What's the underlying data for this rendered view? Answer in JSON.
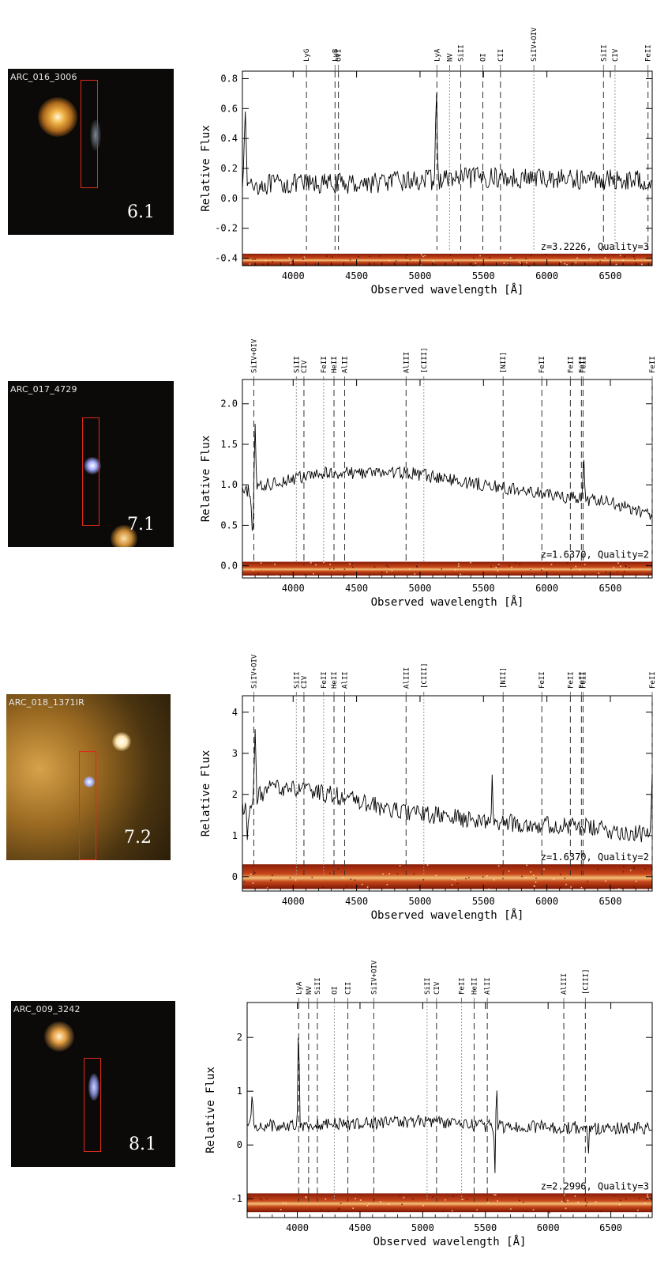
{
  "panels": [
    {
      "image_label": "ARC_016_3006",
      "panel_id": "6.1",
      "x_label": "Observed wavelength [Å]",
      "y_label": "Relative Flux",
      "annotation": "z=3.2226, Quality=3"
    },
    {
      "image_label": "ARC_017_4729",
      "panel_id": "7.1",
      "x_label": "Observed wavelength [Å]",
      "y_label": "Relative Flux",
      "annotation": "z=1.6370, Quality=2"
    },
    {
      "image_label": "ARC_018_1371IR",
      "panel_id": "7.2",
      "x_label": "Observed wavelength [Å]",
      "y_label": "Relative Flux",
      "annotation": "z=1.6370, Quality=2"
    },
    {
      "image_label": "ARC_009_3242",
      "panel_id": "8.1",
      "x_label": "Observed wavelength [Å]",
      "y_label": "Relative Flux",
      "annotation": "z=2.2996, Quality=3"
    }
  ],
  "chart_data": [
    {
      "type": "line",
      "xlabel": "Observed wavelength [Å]",
      "ylabel": "Relative Flux",
      "xlim": [
        3600,
        6830
      ],
      "ylim": [
        -0.45,
        0.85
      ],
      "xticks": [
        4000,
        4500,
        5000,
        5500,
        6000,
        6500
      ],
      "yticks": [
        -0.4,
        -0.2,
        0.0,
        0.2,
        0.4,
        0.6,
        0.8
      ],
      "ytick_labels": [
        "-0.4",
        "-0.2",
        "0.0",
        "0.2",
        "0.4",
        "0.6",
        "0.8"
      ],
      "annotation": "z=3.2226, Quality=3",
      "redshift": 3.2226,
      "quality": 3,
      "spectrum_2d_range": [
        -0.45,
        -0.37
      ],
      "continuum": [
        [
          3600,
          0.09
        ],
        [
          4500,
          0.1
        ],
        [
          5500,
          0.14
        ],
        [
          6830,
          0.12
        ]
      ],
      "noise": 0.07,
      "features": [
        {
          "x": 3620,
          "amp": 0.45,
          "w": 12
        },
        {
          "x": 5128,
          "amp": 0.55,
          "w": 9
        }
      ],
      "lines": [
        {
          "name": "LyG",
          "x": 4105,
          "style": "dash"
        },
        {
          "name": "LyB",
          "x": 4330,
          "style": "dash"
        },
        {
          "name": "OVI",
          "x": 4357,
          "style": "dash"
        },
        {
          "name": "LyA",
          "x": 5133,
          "style": "dash"
        },
        {
          "name": "NV",
          "x": 5233,
          "style": "dot"
        },
        {
          "name": "SiII",
          "x": 5321,
          "style": "dash"
        },
        {
          "name": "OI",
          "x": 5495,
          "style": "dash"
        },
        {
          "name": "CII",
          "x": 5634,
          "style": "dash"
        },
        {
          "name": "SiIV+OIV",
          "x": 5897,
          "style": "dot"
        },
        {
          "name": "SiII",
          "x": 6446,
          "style": "dash"
        },
        {
          "name": "CIV",
          "x": 6537,
          "style": "dot"
        },
        {
          "name": "FeII",
          "x": 6797,
          "style": "dash"
        }
      ]
    },
    {
      "type": "line",
      "xlabel": "Observed wavelength [Å]",
      "ylabel": "Relative Flux",
      "xlim": [
        3600,
        6830
      ],
      "ylim": [
        -0.15,
        2.3
      ],
      "xticks": [
        4000,
        4500,
        5000,
        5500,
        6000,
        6500
      ],
      "yticks": [
        0.0,
        0.5,
        1.0,
        1.5,
        2.0
      ],
      "ytick_labels": [
        "0.0",
        "0.5",
        "1.0",
        "1.5",
        "2.0"
      ],
      "annotation": "z=1.6370, Quality=2",
      "redshift": 1.637,
      "quality": 2,
      "spectrum_2d_range": [
        -0.12,
        0.05
      ],
      "continuum": [
        [
          3600,
          0.9
        ],
        [
          3900,
          1.05
        ],
        [
          4300,
          1.15
        ],
        [
          4900,
          1.15
        ],
        [
          5500,
          1.0
        ],
        [
          6000,
          0.88
        ],
        [
          6500,
          0.78
        ],
        [
          6830,
          0.62
        ]
      ],
      "noise": 0.08,
      "features": [
        {
          "x": 3680,
          "amp": -0.6,
          "w": 10
        },
        {
          "x": 3700,
          "amp": 0.85,
          "w": 8
        },
        {
          "x": 6290,
          "amp": 0.45,
          "w": 8
        }
      ],
      "lines": [
        {
          "name": "SiIV+OIV",
          "x": 3690,
          "style": "dash"
        },
        {
          "name": "SiII",
          "x": 4025,
          "style": "dot"
        },
        {
          "name": "CIV",
          "x": 4085,
          "style": "dash"
        },
        {
          "name": "FeII",
          "x": 4240,
          "style": "dot"
        },
        {
          "name": "HeII",
          "x": 4322,
          "style": "dash"
        },
        {
          "name": "AlII",
          "x": 4406,
          "style": "dash"
        },
        {
          "name": "AlIII",
          "x": 4890,
          "style": "dash"
        },
        {
          "name": "[CIII]",
          "x": 5030,
          "style": "dot"
        },
        {
          "name": "[NII]",
          "x": 5655,
          "style": "dash"
        },
        {
          "name": "FeII",
          "x": 5960,
          "style": "dash"
        },
        {
          "name": "FeII",
          "x": 6185,
          "style": "dash"
        },
        {
          "name": "FeII",
          "x": 6272,
          "style": "dash"
        },
        {
          "name": "FeII",
          "x": 6285,
          "style": "dash"
        },
        {
          "name": "FeII",
          "x": 6830,
          "style": "dash"
        }
      ]
    },
    {
      "type": "line",
      "xlabel": "Observed wavelength [Å]",
      "ylabel": "Relative Flux",
      "xlim": [
        3600,
        6830
      ],
      "ylim": [
        -0.35,
        4.4
      ],
      "xticks": [
        4000,
        4500,
        5000,
        5500,
        6000,
        6500
      ],
      "yticks": [
        0,
        1,
        2,
        3,
        4
      ],
      "ytick_labels": [
        "0",
        "1",
        "2",
        "3",
        "4"
      ],
      "annotation": "z=1.6370, Quality=2",
      "redshift": 1.637,
      "quality": 2,
      "spectrum_2d_range": [
        -0.3,
        0.3
      ],
      "continuum": [
        [
          3600,
          1.7
        ],
        [
          3850,
          2.2
        ],
        [
          4300,
          2.0
        ],
        [
          4800,
          1.6
        ],
        [
          5500,
          1.35
        ],
        [
          6300,
          1.2
        ],
        [
          6830,
          1.0
        ]
      ],
      "noise": 0.22,
      "features": [
        {
          "x": 3640,
          "amp": -0.8,
          "w": 10
        },
        {
          "x": 3700,
          "amp": 1.5,
          "w": 8
        },
        {
          "x": 5570,
          "amp": 1.0,
          "w": 6
        },
        {
          "x": 6830,
          "amp": 1.3,
          "w": 10
        }
      ],
      "lines": [
        {
          "name": "SiIV+OIV",
          "x": 3690,
          "style": "dash"
        },
        {
          "name": "SiII",
          "x": 4025,
          "style": "dot"
        },
        {
          "name": "CIV",
          "x": 4085,
          "style": "dash"
        },
        {
          "name": "FeII",
          "x": 4240,
          "style": "dot"
        },
        {
          "name": "HeII",
          "x": 4322,
          "style": "dash"
        },
        {
          "name": "AlII",
          "x": 4406,
          "style": "dash"
        },
        {
          "name": "AlIII",
          "x": 4890,
          "style": "dash"
        },
        {
          "name": "[CIII]",
          "x": 5030,
          "style": "dot"
        },
        {
          "name": "[NII]",
          "x": 5655,
          "style": "dash"
        },
        {
          "name": "FeII",
          "x": 5960,
          "style": "dash"
        },
        {
          "name": "FeII",
          "x": 6185,
          "style": "dash"
        },
        {
          "name": "FeII",
          "x": 6272,
          "style": "dash"
        },
        {
          "name": "FeII",
          "x": 6285,
          "style": "dash"
        },
        {
          "name": "FeII",
          "x": 6830,
          "style": "dash"
        }
      ]
    },
    {
      "type": "line",
      "xlabel": "Observed wavelength [Å]",
      "ylabel": "Relative Flux",
      "xlim": [
        3600,
        6830
      ],
      "ylim": [
        -1.35,
        2.65
      ],
      "xticks": [
        4000,
        4500,
        5000,
        5500,
        6000,
        6500
      ],
      "yticks": [
        -1,
        0,
        1,
        2
      ],
      "ytick_labels": [
        "-1",
        "0",
        "1",
        "2"
      ],
      "annotation": "z=2.2996, Quality=3",
      "redshift": 2.2996,
      "quality": 3,
      "spectrum_2d_range": [
        -1.25,
        -0.9
      ],
      "continuum": [
        [
          3600,
          0.35
        ],
        [
          4500,
          0.4
        ],
        [
          5000,
          0.45
        ],
        [
          5500,
          0.35
        ],
        [
          6830,
          0.3
        ]
      ],
      "noise": 0.12,
      "features": [
        {
          "x": 3640,
          "amp": 0.5,
          "w": 10
        },
        {
          "x": 4010,
          "amp": 1.85,
          "w": 7
        },
        {
          "x": 5575,
          "amp": -0.95,
          "w": 5
        },
        {
          "x": 5590,
          "amp": 0.6,
          "w": 6
        },
        {
          "x": 6320,
          "amp": -0.7,
          "w": 5
        }
      ],
      "lines": [
        {
          "name": "LyA",
          "x": 4011,
          "style": "dash"
        },
        {
          "name": "NV",
          "x": 4090,
          "style": "dash"
        },
        {
          "name": "SiII",
          "x": 4160,
          "style": "dash"
        },
        {
          "name": "OI",
          "x": 4295,
          "style": "dot"
        },
        {
          "name": "CII",
          "x": 4403,
          "style": "dash"
        },
        {
          "name": "SiIV+OIV",
          "x": 4610,
          "style": "dash"
        },
        {
          "name": "SiII",
          "x": 5035,
          "style": "dot"
        },
        {
          "name": "CIV",
          "x": 5110,
          "style": "dash"
        },
        {
          "name": "FeII",
          "x": 5310,
          "style": "dot"
        },
        {
          "name": "HeII",
          "x": 5410,
          "style": "dash"
        },
        {
          "name": "AlII",
          "x": 5515,
          "style": "dash"
        },
        {
          "name": "AlIII",
          "x": 6125,
          "style": "dash"
        },
        {
          "name": "[CIII]",
          "x": 6297,
          "style": "dash"
        }
      ]
    }
  ]
}
